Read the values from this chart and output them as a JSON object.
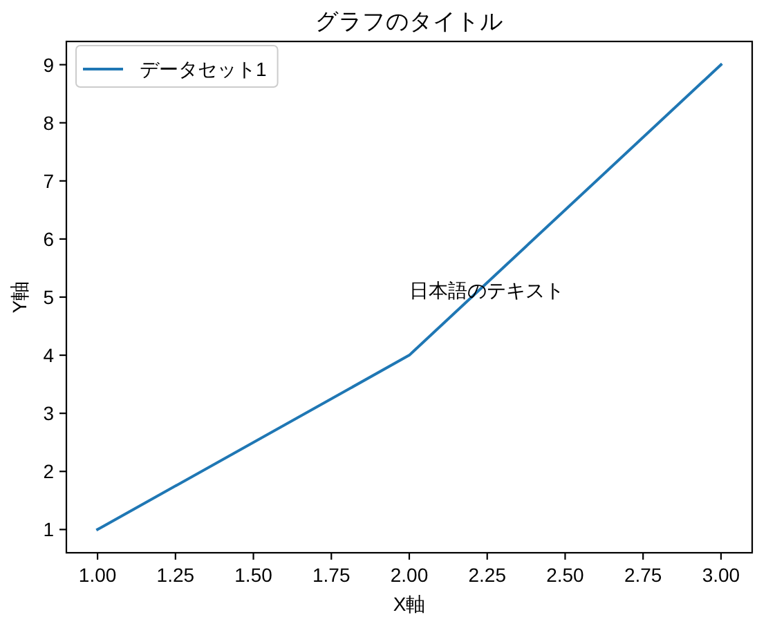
{
  "chart_data": {
    "type": "line",
    "title": "グラフのタイトル",
    "xlabel": "X軸",
    "ylabel": "Y軸",
    "x": [
      1,
      2,
      3
    ],
    "series": [
      {
        "name": "データセット1",
        "color": "#1f77b4",
        "values": [
          1,
          4,
          9
        ]
      }
    ],
    "xlim": [
      0.9,
      3.1
    ],
    "ylim": [
      0.6,
      9.4
    ],
    "xticks": [
      {
        "value": 1,
        "label": "1.00"
      },
      {
        "value": 1.25,
        "label": "1.25"
      },
      {
        "value": 1.5,
        "label": "1.50"
      },
      {
        "value": 1.75,
        "label": "1.75"
      },
      {
        "value": 2,
        "label": "2.00"
      },
      {
        "value": 2.25,
        "label": "2.25"
      },
      {
        "value": 2.5,
        "label": "2.50"
      },
      {
        "value": 2.75,
        "label": "2.75"
      },
      {
        "value": 3,
        "label": "3.00"
      }
    ],
    "yticks": [
      1,
      2,
      3,
      4,
      5,
      6,
      7,
      8,
      9
    ],
    "legend": "top left",
    "line_style": "solid",
    "annotations": [
      "日本語のテキスト"
    ]
  }
}
